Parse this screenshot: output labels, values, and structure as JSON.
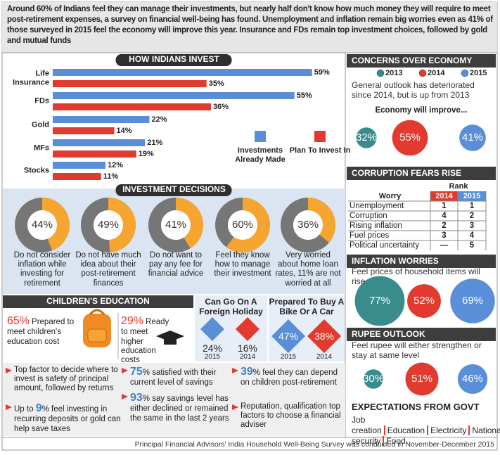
{
  "intro": "Around 60% of Indians feel they can manage their investments, but nearly half don't know how much money they will require to meet post-retirement expenses, a survey on financial well-being has found. Unemployment and inflation remain big worries even as 41% of those surveyed in 2015 feel the economy will improve this year. Insurance and FDs remain top investment choices, followed by gold and mutual funds",
  "chart_data": [
    {
      "type": "bar",
      "title": "HOW INDIANS INVEST",
      "categories": [
        "Life Insurance",
        "FDs",
        "Gold",
        "MFs",
        "Stocks"
      ],
      "series": [
        {
          "name": "Investments Already Made",
          "color": "#5a8fd8",
          "values": [
            59,
            55,
            22,
            21,
            12
          ],
          "value_labels": [
            "59%",
            "55%",
            "22%",
            "21%",
            "12%"
          ]
        },
        {
          "name": "Plan To Invest In",
          "color": "#e23a2e",
          "values": [
            35,
            36,
            14,
            19,
            11
          ],
          "value_labels": [
            "35%",
            "36%",
            "14%",
            "19%",
            "11%"
          ]
        }
      ]
    },
    {
      "type": "donut",
      "title": "INVESTMENT DECISIONS",
      "categories": [
        "Do not consider inflation while investing for retirement",
        "Do not have much idea about their post-retirement finances",
        "Do not want to pay any fee for financial advice",
        "Feel they know how to manage their investment",
        "Very worried about home loan rates, 11% are not worried at all"
      ],
      "values": [
        44,
        49,
        41,
        60,
        36
      ],
      "value_labels": [
        "44%",
        "49%",
        "41%",
        "60%",
        "36%"
      ],
      "colors": [
        "#f6a531",
        "#767676"
      ]
    },
    {
      "type": "diamond",
      "title": "Can Go On A Foreign Holiday",
      "categories": [
        "2015",
        "2014"
      ],
      "values": [
        24,
        16
      ],
      "value_labels": [
        "24%",
        "16%"
      ],
      "colors": [
        "#5a8fd8",
        "#e23a2e"
      ]
    },
    {
      "type": "diamond",
      "title": "Prepared To Buy A Bike Or A Car",
      "categories": [
        "2015",
        "2014"
      ],
      "values": [
        47,
        38
      ],
      "value_labels": [
        "47%",
        "38%"
      ],
      "colors": [
        "#5a8fd8",
        "#e23a2e"
      ]
    },
    {
      "type": "bubble",
      "title": "CONCERNS OVER ECONOMY",
      "subtitle": "General outlook has deteriorated since 2014, but is up from 2013",
      "annotation": "Economy will improve...",
      "categories": [
        "2013",
        "2014",
        "2015"
      ],
      "values": [
        32,
        55,
        41
      ],
      "value_labels": [
        "32%",
        "55%",
        "41%"
      ],
      "colors": [
        "#3a8c8c",
        "#e23a2e",
        "#5a8fd8"
      ]
    },
    {
      "type": "bubble",
      "title": "INFLATION WORRIES",
      "subtitle": "Feel prices of household items will rise",
      "values": [
        77,
        52,
        69
      ],
      "value_labels": [
        "77%",
        "52%",
        "69%"
      ],
      "colors": [
        "#3a8c8c",
        "#e23a2e",
        "#5a8fd8"
      ]
    },
    {
      "type": "bubble",
      "title": "RUPEE OUTLOOK",
      "subtitle": "Feel rupee will either strengthen or stay at same level",
      "values": [
        30,
        51,
        46
      ],
      "value_labels": [
        "30%",
        "51%",
        "46%"
      ],
      "colors": [
        "#3a8c8c",
        "#e23a2e",
        "#5a8fd8"
      ]
    }
  ],
  "childrens_education": {
    "title": "CHILDREN'S EDUCATION",
    "items": [
      {
        "value": "65%",
        "text": "Prepared to meet children's education cost"
      },
      {
        "value": "29%",
        "text": "Ready to meet higher education costs"
      }
    ]
  },
  "corruption": {
    "title": "CORRUPTION FEARS RISE",
    "rank_header": "Rank",
    "columns": [
      "Worry",
      "2014",
      "2015"
    ],
    "rows": [
      [
        "Unemployment",
        "1",
        "1"
      ],
      [
        "Corruption",
        "4",
        "2"
      ],
      [
        "Rising inflation",
        "2",
        "3"
      ],
      [
        "Fuel prices",
        "3",
        "4"
      ],
      [
        "Political uncertainty",
        "—",
        "5"
      ]
    ]
  },
  "bullets": [
    {
      "text": "Top factor to decide where to invest is safety of principal amount, followed by returns"
    },
    {
      "lead": "Up to ",
      "highlight": "9",
      "text": "% feel investing in recurring deposits or gold can help save taxes"
    },
    {
      "highlight": "75",
      "text": "% satisfied with their current level of savings"
    },
    {
      "highlight": "93",
      "text": "% say savings level has either declined or remained the same in the last 2 years"
    },
    {
      "highlight": "39",
      "text": "% feel they can depend on children post-retirement"
    },
    {
      "text": "Reputation, qualification top factors to choose a financial adviser"
    }
  ],
  "expectations": {
    "title": "EXPECTATIONS FROM GOVT",
    "items": [
      "Job creation",
      "Education",
      "Electricity",
      "National security",
      "Food"
    ]
  },
  "footer": "Principal Financial Advisors' India Household Well-Being Survey was conducted in November-December 2015"
}
